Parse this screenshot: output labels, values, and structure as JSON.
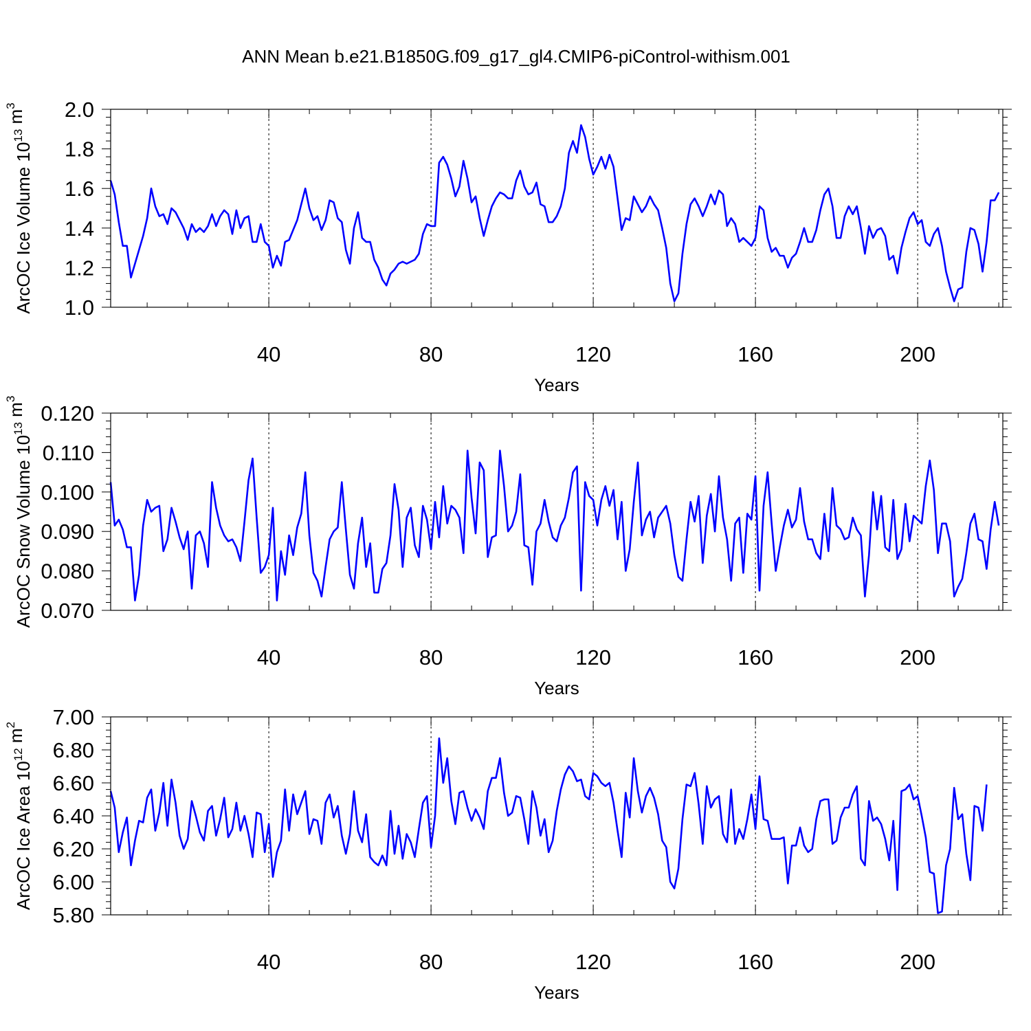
{
  "figure_title": "ANN Mean b.e21.B1850G.f09_g17_gl4.CMIP6-piControl-withism.001",
  "line_color": "#0000ff",
  "chart_data": [
    {
      "type": "line",
      "name": "ice-volume",
      "title": "ANN Mean b.e21.B1850G.f09_g17_gl4.CMIP6-piControl-withism.001",
      "ylabel_main": "ArcOC Ice Volume 10",
      "ylabel_exp": "13",
      "ylabel_unit": " m",
      "ylabel_unit_exp": "3",
      "xlabel": "Years",
      "xlim": [
        1,
        221
      ],
      "ylim": [
        1.0,
        2.0
      ],
      "xticks": [
        40,
        80,
        120,
        160,
        200
      ],
      "yticks": [
        1.0,
        1.2,
        1.4,
        1.6,
        1.8,
        2.0
      ],
      "ytick_labels": [
        "1.0",
        "1.2",
        "1.4",
        "1.6",
        "1.8",
        "2.0"
      ],
      "x_start": 1,
      "values": [
        1.64,
        1.57,
        1.43,
        1.31,
        1.31,
        1.15,
        1.22,
        1.29,
        1.36,
        1.45,
        1.6,
        1.51,
        1.46,
        1.47,
        1.42,
        1.5,
        1.48,
        1.44,
        1.4,
        1.34,
        1.42,
        1.38,
        1.4,
        1.38,
        1.41,
        1.47,
        1.41,
        1.46,
        1.49,
        1.47,
        1.37,
        1.49,
        1.4,
        1.45,
        1.46,
        1.33,
        1.33,
        1.42,
        1.33,
        1.31,
        1.2,
        1.26,
        1.21,
        1.33,
        1.34,
        1.39,
        1.44,
        1.52,
        1.6,
        1.5,
        1.44,
        1.46,
        1.39,
        1.44,
        1.54,
        1.53,
        1.45,
        1.43,
        1.29,
        1.22,
        1.4,
        1.48,
        1.35,
        1.33,
        1.33,
        1.24,
        1.2,
        1.14,
        1.11,
        1.17,
        1.19,
        1.22,
        1.23,
        1.22,
        1.23,
        1.24,
        1.27,
        1.37,
        1.42,
        1.41,
        1.41,
        1.73,
        1.76,
        1.72,
        1.65,
        1.56,
        1.61,
        1.74,
        1.65,
        1.53,
        1.56,
        1.45,
        1.36,
        1.44,
        1.51,
        1.55,
        1.58,
        1.57,
        1.55,
        1.55,
        1.64,
        1.69,
        1.61,
        1.57,
        1.58,
        1.63,
        1.52,
        1.51,
        1.43,
        1.43,
        1.46,
        1.51,
        1.6,
        1.78,
        1.84,
        1.78,
        1.92,
        1.86,
        1.75,
        1.67,
        1.71,
        1.76,
        1.7,
        1.77,
        1.71,
        1.55,
        1.39,
        1.45,
        1.44,
        1.56,
        1.52,
        1.48,
        1.51,
        1.56,
        1.52,
        1.49,
        1.4,
        1.3,
        1.12,
        1.03,
        1.07,
        1.27,
        1.42,
        1.52,
        1.55,
        1.51,
        1.46,
        1.51,
        1.57,
        1.52,
        1.59,
        1.57,
        1.41,
        1.45,
        1.42,
        1.33,
        1.35,
        1.33,
        1.31,
        1.35,
        1.51,
        1.49,
        1.35,
        1.28,
        1.3,
        1.26,
        1.26,
        1.2,
        1.25,
        1.27,
        1.33,
        1.4,
        1.33,
        1.33,
        1.39,
        1.49,
        1.57,
        1.6,
        1.51,
        1.35,
        1.35,
        1.46,
        1.51,
        1.47,
        1.51,
        1.4,
        1.27,
        1.41,
        1.35,
        1.39,
        1.4,
        1.36,
        1.24,
        1.26,
        1.17,
        1.3,
        1.38,
        1.45,
        1.48,
        1.42,
        1.44,
        1.33,
        1.31,
        1.37,
        1.4,
        1.31,
        1.18,
        1.1,
        1.03,
        1.09,
        1.1,
        1.28,
        1.4,
        1.39,
        1.32,
        1.18,
        1.33,
        1.54,
        1.54,
        1.58
      ]
    },
    {
      "type": "line",
      "name": "snow-volume",
      "ylabel_main": "ArcOC Snow Volume 10",
      "ylabel_exp": "13",
      "ylabel_unit": " m",
      "ylabel_unit_exp": "3",
      "xlabel": "Years",
      "xlim": [
        1,
        221
      ],
      "ylim": [
        0.07,
        0.12
      ],
      "xticks": [
        40,
        80,
        120,
        160,
        200
      ],
      "yticks": [
        0.07,
        0.08,
        0.09,
        0.1,
        0.11,
        0.12
      ],
      "ytick_labels": [
        "0.070",
        "0.080",
        "0.090",
        "0.100",
        "0.110",
        "0.120"
      ],
      "x_start": 1,
      "values": [
        0.1025,
        0.0915,
        0.093,
        0.0905,
        0.086,
        0.086,
        0.0725,
        0.079,
        0.0915,
        0.098,
        0.095,
        0.096,
        0.0965,
        0.085,
        0.088,
        0.096,
        0.0925,
        0.0885,
        0.0855,
        0.09,
        0.0755,
        0.089,
        0.09,
        0.087,
        0.081,
        0.1025,
        0.096,
        0.0915,
        0.089,
        0.0875,
        0.088,
        0.086,
        0.0825,
        0.0925,
        0.103,
        0.1085,
        0.0935,
        0.0795,
        0.081,
        0.084,
        0.096,
        0.0725,
        0.085,
        0.079,
        0.089,
        0.084,
        0.091,
        0.0945,
        0.105,
        0.089,
        0.0795,
        0.0775,
        0.0735,
        0.081,
        0.088,
        0.09,
        0.091,
        0.1025,
        0.0905,
        0.079,
        0.0755,
        0.087,
        0.0935,
        0.081,
        0.087,
        0.0745,
        0.0745,
        0.0805,
        0.082,
        0.089,
        0.102,
        0.0955,
        0.081,
        0.0935,
        0.096,
        0.0865,
        0.0835,
        0.0965,
        0.093,
        0.0855,
        0.0975,
        0.0885,
        0.1015,
        0.092,
        0.0965,
        0.0955,
        0.0935,
        0.0845,
        0.1105,
        0.0985,
        0.0895,
        0.1075,
        0.1055,
        0.0835,
        0.0885,
        0.089,
        0.1105,
        0.1015,
        0.09,
        0.0915,
        0.095,
        0.1045,
        0.0865,
        0.086,
        0.0765,
        0.09,
        0.092,
        0.098,
        0.0925,
        0.0885,
        0.0875,
        0.0915,
        0.0935,
        0.0985,
        0.105,
        0.1065,
        0.075,
        0.1025,
        0.099,
        0.098,
        0.0915,
        0.098,
        0.1015,
        0.0965,
        0.1005,
        0.088,
        0.0975,
        0.08,
        0.0855,
        0.0975,
        0.1075,
        0.089,
        0.093,
        0.095,
        0.0885,
        0.0935,
        0.095,
        0.0965,
        0.092,
        0.084,
        0.0785,
        0.0775,
        0.088,
        0.0975,
        0.0925,
        0.099,
        0.082,
        0.094,
        0.0995,
        0.09,
        0.104,
        0.0935,
        0.088,
        0.0775,
        0.092,
        0.0935,
        0.0795,
        0.0945,
        0.093,
        0.104,
        0.075,
        0.0965,
        0.105,
        0.092,
        0.08,
        0.086,
        0.0915,
        0.0955,
        0.091,
        0.093,
        0.101,
        0.0925,
        0.088,
        0.088,
        0.0845,
        0.083,
        0.0945,
        0.085,
        0.101,
        0.0915,
        0.0905,
        0.088,
        0.0885,
        0.0935,
        0.0905,
        0.089,
        0.0735,
        0.084,
        0.1,
        0.0905,
        0.099,
        0.086,
        0.085,
        0.098,
        0.083,
        0.0855,
        0.097,
        0.0875,
        0.094,
        0.093,
        0.092,
        0.1015,
        0.108,
        0.1005,
        0.0845,
        0.092,
        0.092,
        0.0875,
        0.0735,
        0.076,
        0.078,
        0.0845,
        0.092,
        0.0945,
        0.088,
        0.0875,
        0.0805,
        0.0905,
        0.0975,
        0.0915
      ]
    },
    {
      "type": "line",
      "name": "ice-area",
      "ylabel_main": "ArcOC Ice Area 10",
      "ylabel_exp": "12",
      "ylabel_unit": " m",
      "ylabel_unit_exp": "2",
      "xlabel": "Years",
      "xlim": [
        1,
        221
      ],
      "ylim": [
        5.8,
        7.0
      ],
      "xticks": [
        40,
        80,
        120,
        160,
        200
      ],
      "yticks": [
        5.8,
        6.0,
        6.2,
        6.4,
        6.6,
        6.8,
        7.0
      ],
      "ytick_labels": [
        "5.80",
        "6.00",
        "6.20",
        "6.40",
        "6.60",
        "6.80",
        "7.00"
      ],
      "x_start": 1,
      "values": [
        6.55,
        6.45,
        6.18,
        6.3,
        6.39,
        6.1,
        6.25,
        6.37,
        6.36,
        6.51,
        6.56,
        6.31,
        6.42,
        6.6,
        6.34,
        6.62,
        6.48,
        6.28,
        6.2,
        6.26,
        6.49,
        6.4,
        6.3,
        6.25,
        6.43,
        6.46,
        6.28,
        6.38,
        6.51,
        6.27,
        6.32,
        6.48,
        6.31,
        6.4,
        6.29,
        6.15,
        6.42,
        6.41,
        6.18,
        6.35,
        6.03,
        6.18,
        6.25,
        6.56,
        6.31,
        6.53,
        6.41,
        6.48,
        6.55,
        6.29,
        6.38,
        6.37,
        6.23,
        6.48,
        6.53,
        6.39,
        6.46,
        6.28,
        6.17,
        6.29,
        6.55,
        6.31,
        6.24,
        6.41,
        6.15,
        6.12,
        6.1,
        6.16,
        6.1,
        6.43,
        6.17,
        6.34,
        6.14,
        6.29,
        6.24,
        6.15,
        6.32,
        6.48,
        6.52,
        6.21,
        6.4,
        6.87,
        6.6,
        6.75,
        6.49,
        6.35,
        6.54,
        6.55,
        6.45,
        6.37,
        6.44,
        6.39,
        6.32,
        6.55,
        6.63,
        6.63,
        6.75,
        6.54,
        6.4,
        6.42,
        6.52,
        6.51,
        6.38,
        6.23,
        6.55,
        6.45,
        6.28,
        6.38,
        6.18,
        6.25,
        6.43,
        6.56,
        6.65,
        6.7,
        6.67,
        6.61,
        6.62,
        6.52,
        6.5,
        6.66,
        6.64,
        6.6,
        6.58,
        6.6,
        6.48,
        6.31,
        6.15,
        6.54,
        6.39,
        6.75,
        6.55,
        6.42,
        6.52,
        6.57,
        6.51,
        6.41,
        6.25,
        6.21,
        6.0,
        5.96,
        6.08,
        6.38,
        6.59,
        6.58,
        6.66,
        6.47,
        6.23,
        6.58,
        6.45,
        6.5,
        6.52,
        6.29,
        6.24,
        6.56,
        6.23,
        6.32,
        6.26,
        6.38,
        6.53,
        6.32,
        6.64,
        6.38,
        6.37,
        6.26,
        6.26,
        6.26,
        6.27,
        5.99,
        6.22,
        6.22,
        6.33,
        6.22,
        6.18,
        6.2,
        6.38,
        6.49,
        6.5,
        6.5,
        6.23,
        6.25,
        6.39,
        6.45,
        6.45,
        6.53,
        6.58,
        6.14,
        6.1,
        6.49,
        6.37,
        6.39,
        6.35,
        6.26,
        6.13,
        6.37,
        5.95,
        6.55,
        6.56,
        6.59,
        6.5,
        6.52,
        6.4,
        6.27,
        6.06,
        6.05,
        5.81,
        5.82,
        6.1,
        6.2,
        6.57,
        6.38,
        6.41,
        6.17,
        6.01,
        6.46,
        6.45,
        6.31,
        6.59
      ]
    }
  ]
}
